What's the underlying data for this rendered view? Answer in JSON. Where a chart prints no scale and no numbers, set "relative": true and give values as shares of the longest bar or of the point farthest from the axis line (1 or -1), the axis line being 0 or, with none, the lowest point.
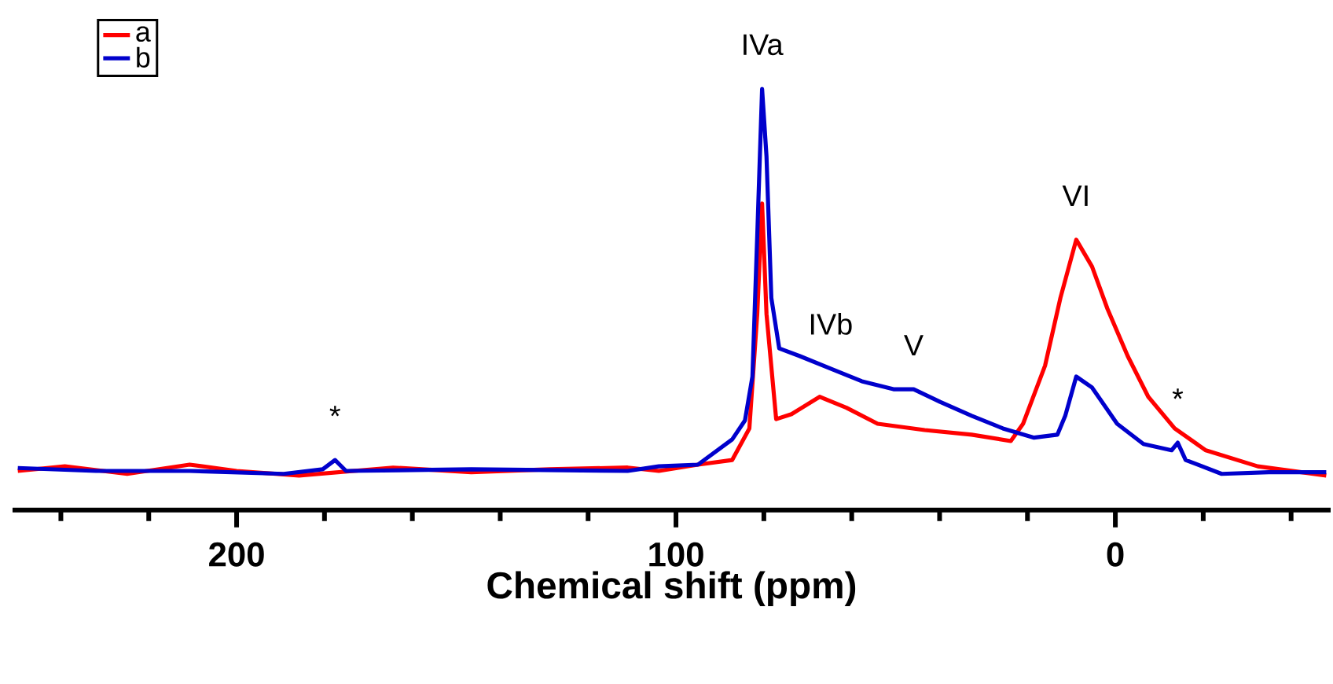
{
  "chart_data": {
    "type": "line",
    "xlabel": "Chemical shift (ppm)",
    "relative": true,
    "legend": "top left",
    "marker": "none",
    "line_style": "solid",
    "xlim": [
      251,
      -49
    ],
    "xticks": [
      {
        "value": 240,
        "label": null
      },
      {
        "value": 220,
        "label": null
      },
      200,
      {
        "value": 180,
        "label": null
      },
      {
        "value": 160,
        "label": null
      },
      {
        "value": 140,
        "label": null
      },
      {
        "value": 120,
        "label": null
      },
      100,
      {
        "value": 80,
        "label": null
      },
      {
        "value": 60,
        "label": null
      },
      {
        "value": 40,
        "label": null
      },
      {
        "value": 20,
        "label": null
      },
      0,
      {
        "value": -20,
        "label": null
      },
      {
        "value": -40,
        "label": null
      }
    ],
    "series": [
      {
        "name": "a",
        "color": "#ff0000",
        "x": [
          249.8,
          239.1,
          224.9,
          210.7,
          200.0,
          185.8,
          164.4,
          146.6,
          128.8,
          111.0,
          103.9,
          95.0,
          87.2,
          83.3,
          81.5,
          80.4,
          79.4,
          77.2,
          73.7,
          67.3,
          61.2,
          54.1,
          43.4,
          32.7,
          23.8,
          21.0,
          16.0,
          12.5,
          8.9,
          5.3,
          1.8,
          -2.8,
          -7.5,
          -13.5,
          -20.6,
          -32.4,
          -48.0
        ],
        "values": [
          0.093,
          0.104,
          0.086,
          0.108,
          0.093,
          0.082,
          0.101,
          0.09,
          0.097,
          0.101,
          0.093,
          0.108,
          0.119,
          0.194,
          0.466,
          0.728,
          0.466,
          0.216,
          0.228,
          0.269,
          0.243,
          0.205,
          0.19,
          0.179,
          0.164,
          0.205,
          0.343,
          0.504,
          0.642,
          0.578,
          0.478,
          0.366,
          0.269,
          0.194,
          0.142,
          0.104,
          0.082
        ]
      },
      {
        "name": "b",
        "color": "#0000cc",
        "x": [
          249.8,
          232.0,
          210.7,
          189.3,
          180.4,
          177.6,
          175.1,
          146.6,
          111.0,
          103.9,
          95.0,
          87.2,
          84.3,
          82.6,
          81.5,
          80.4,
          79.4,
          78.3,
          76.5,
          71.9,
          64.8,
          57.7,
          50.5,
          45.9,
          39.9,
          32.7,
          25.6,
          18.5,
          13.2,
          11.4,
          8.9,
          5.3,
          -0.4,
          -6.4,
          -12.8,
          -14.2,
          -16.0,
          -24.2,
          -34.9,
          -48.0
        ],
        "values": [
          0.1,
          0.093,
          0.093,
          0.086,
          0.097,
          0.119,
          0.093,
          0.097,
          0.093,
          0.104,
          0.108,
          0.168,
          0.213,
          0.317,
          0.653,
          1.0,
          0.84,
          0.504,
          0.384,
          0.366,
          0.336,
          0.306,
          0.287,
          0.287,
          0.257,
          0.224,
          0.194,
          0.172,
          0.179,
          0.224,
          0.317,
          0.291,
          0.205,
          0.157,
          0.142,
          0.16,
          0.119,
          0.086,
          0.09,
          0.09
        ]
      }
    ],
    "annotations": [
      {
        "text": "IVa",
        "x": 80.4,
        "y": 1.0
      },
      {
        "text": "IVb",
        "x": 64.8,
        "y": 0.336
      },
      {
        "text": "V",
        "x": 45.9,
        "y": 0.287
      },
      {
        "text": "VI",
        "x": 8.9,
        "y": 0.642
      },
      {
        "text": "*",
        "x": 177.6,
        "y": 0.119
      },
      {
        "text": "*",
        "x": -14.2,
        "y": 0.16
      }
    ]
  }
}
